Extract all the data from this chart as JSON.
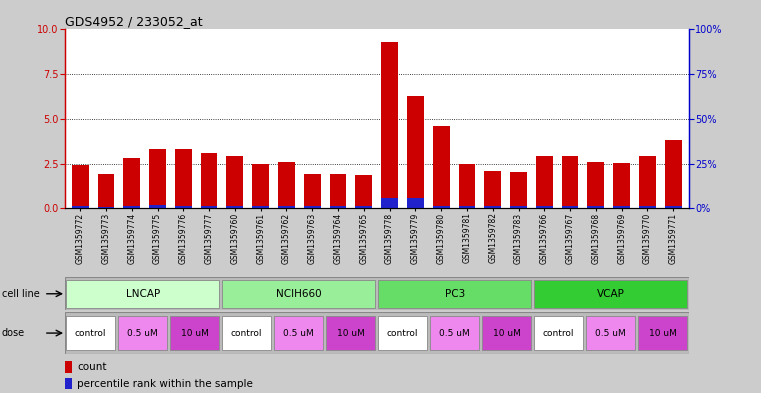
{
  "title": "GDS4952 / 233052_at",
  "samples": [
    "GSM1359772",
    "GSM1359773",
    "GSM1359774",
    "GSM1359775",
    "GSM1359776",
    "GSM1359777",
    "GSM1359760",
    "GSM1359761",
    "GSM1359762",
    "GSM1359763",
    "GSM1359764",
    "GSM1359765",
    "GSM1359778",
    "GSM1359779",
    "GSM1359780",
    "GSM1359781",
    "GSM1359782",
    "GSM1359783",
    "GSM1359766",
    "GSM1359767",
    "GSM1359768",
    "GSM1359769",
    "GSM1359770",
    "GSM1359771"
  ],
  "red_values": [
    2.4,
    1.9,
    2.8,
    3.3,
    3.3,
    3.1,
    2.9,
    2.5,
    2.6,
    1.9,
    1.9,
    1.85,
    9.3,
    6.3,
    4.6,
    2.45,
    2.1,
    2.05,
    2.95,
    2.95,
    2.6,
    2.55,
    2.95,
    3.8
  ],
  "blue_values": [
    0.15,
    0.1,
    0.15,
    0.2,
    0.15,
    0.15,
    0.15,
    0.15,
    0.15,
    0.15,
    0.15,
    0.15,
    0.6,
    0.6,
    0.15,
    0.15,
    0.15,
    0.15,
    0.15,
    0.15,
    0.15,
    0.15,
    0.15,
    0.15
  ],
  "cell_lines": [
    {
      "label": "LNCAP",
      "start": 0,
      "end": 6,
      "color": "#ccffcc"
    },
    {
      "label": "NCIH660",
      "start": 6,
      "end": 12,
      "color": "#99ee99"
    },
    {
      "label": "PC3",
      "start": 12,
      "end": 18,
      "color": "#66dd66"
    },
    {
      "label": "VCAP",
      "start": 18,
      "end": 24,
      "color": "#33cc33"
    }
  ],
  "dose_labels": [
    "control",
    "0.5 uM",
    "10 uM",
    "control",
    "0.5 uM",
    "10 uM",
    "control",
    "0.5 uM",
    "10 uM",
    "control",
    "0.5 uM",
    "10 uM"
  ],
  "dose_ranges": [
    [
      0,
      2
    ],
    [
      2,
      4
    ],
    [
      4,
      6
    ],
    [
      6,
      8
    ],
    [
      8,
      10
    ],
    [
      10,
      12
    ],
    [
      12,
      14
    ],
    [
      14,
      16
    ],
    [
      16,
      18
    ],
    [
      18,
      20
    ],
    [
      20,
      22
    ],
    [
      22,
      24
    ]
  ],
  "dose_colors": {
    "control": "#ffffff",
    "0.5 uM": "#ee88ee",
    "10 uM": "#cc44cc"
  },
  "ylim": [
    0,
    10
  ],
  "yticks": [
    0,
    2.5,
    5.0,
    7.5,
    10.0
  ],
  "y2ticks": [
    0,
    25,
    50,
    75,
    100
  ],
  "hlines": [
    2.5,
    5.0,
    7.5
  ],
  "red_color": "#cc0000",
  "blue_color": "#2222cc",
  "left_axis_color": "#cc0000",
  "right_axis_color": "#0000cc",
  "bg_color": "#ffffff",
  "fig_bg": "#cccccc"
}
